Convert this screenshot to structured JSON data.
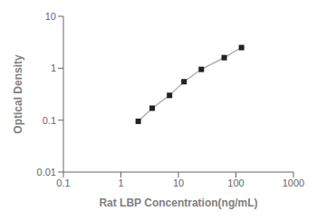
{
  "chart_data": {
    "type": "line",
    "x": [
      2.0,
      3.5,
      7.0,
      12.5,
      25.0,
      62.5,
      125.0
    ],
    "values": [
      0.095,
      0.17,
      0.3,
      0.55,
      0.95,
      1.6,
      2.5
    ],
    "xlabel": "Rat LBP Concentration(ng/mL)",
    "ylabel": "Optical Density",
    "xlim": [
      0.1,
      1000
    ],
    "ylim": [
      0.01,
      10
    ],
    "xticks": [
      0.1,
      1,
      10,
      100,
      1000
    ],
    "yticks": [
      0.01,
      0.1,
      1,
      10
    ],
    "log": true,
    "grid": false,
    "color": "#222222",
    "marker": "square"
  }
}
